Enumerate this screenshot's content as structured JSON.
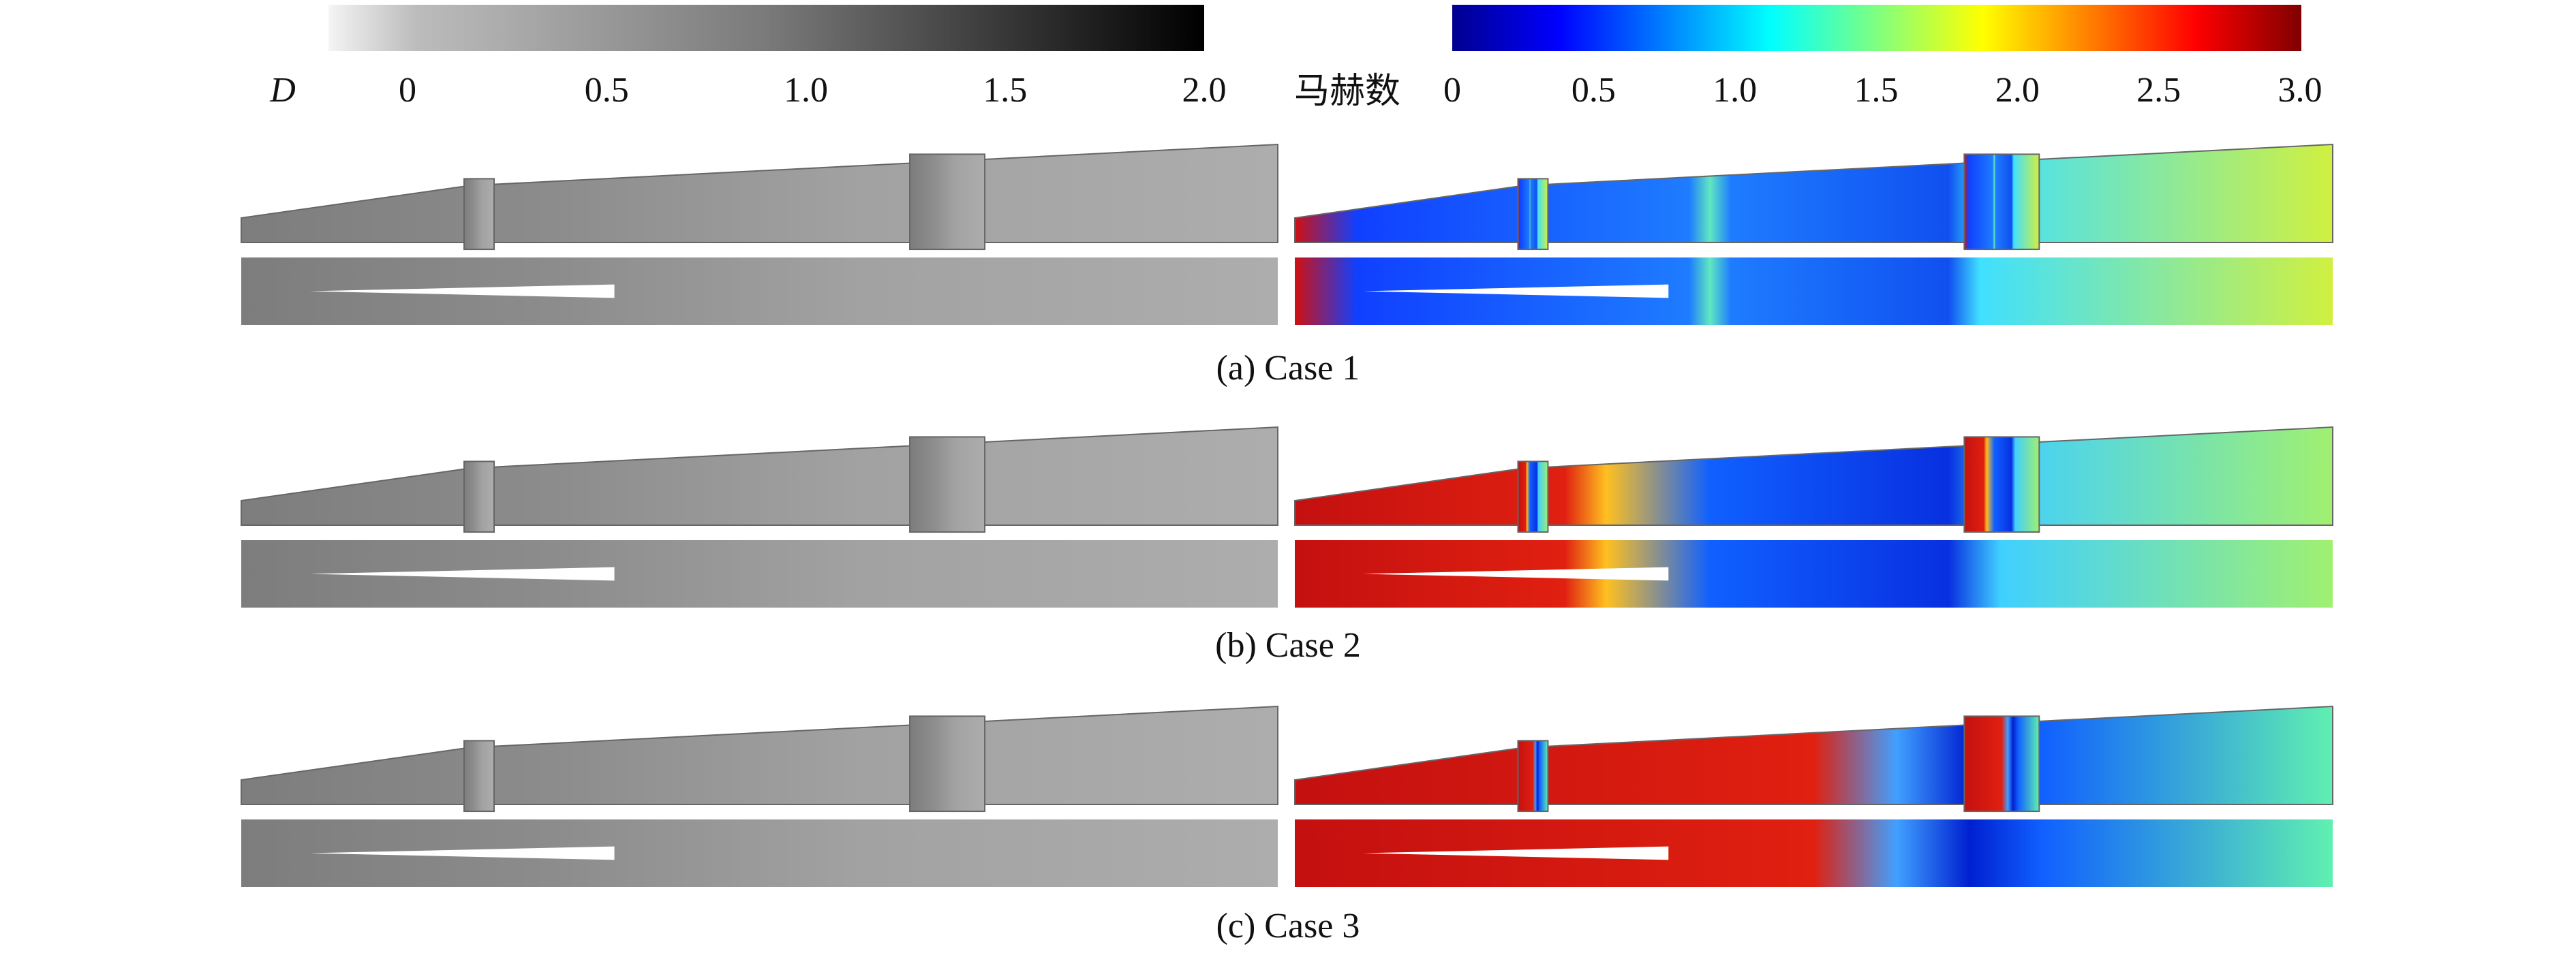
{
  "colorbars": [
    {
      "label": "D",
      "ticks": [
        "0",
        "0.5",
        "1.0",
        "1.5",
        "2.0"
      ]
    },
    {
      "label": "马赫数",
      "ticks": [
        "0",
        "0.5",
        "1.0",
        "1.5",
        "2.0",
        "2.5",
        "3.0"
      ]
    }
  ],
  "cases": [
    {
      "caption": "(a) Case 1"
    },
    {
      "caption": "(b) Case 2"
    },
    {
      "caption": "(c) Case 3"
    }
  ]
}
